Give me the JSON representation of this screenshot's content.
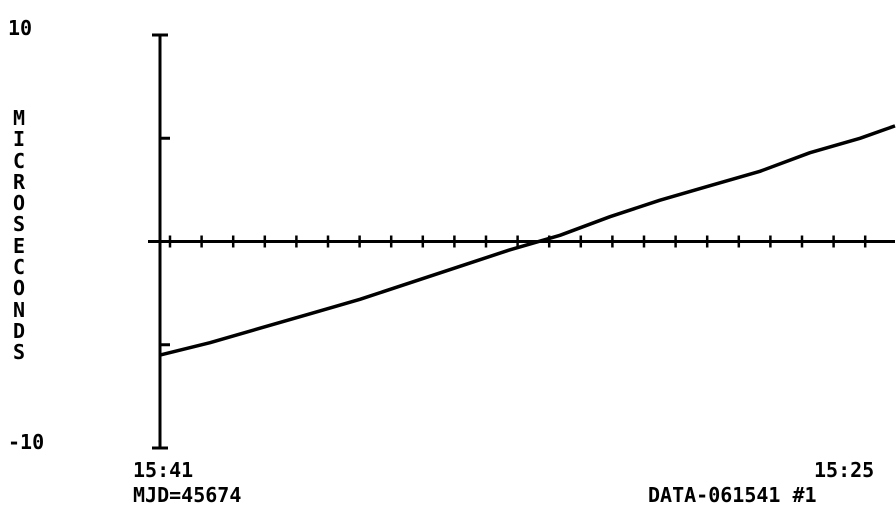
{
  "chart_data": {
    "type": "line",
    "title": "",
    "ylabel": "MICROSECONDS",
    "ylim": [
      -10,
      10
    ],
    "y_ticks": [
      "10",
      "-10"
    ],
    "x_start_label": "15:41",
    "x_end_label": "15:25",
    "footer_left": "MJD=45674",
    "footer_right": "DATA-061541 #1",
    "x": [
      0,
      50,
      100,
      150,
      200,
      250,
      300,
      350,
      400,
      450,
      500,
      550,
      600,
      650,
      700,
      735
    ],
    "series": [
      {
        "values": [
          -5.5,
          -4.9,
          -4.2,
          -3.5,
          -2.8,
          -2.0,
          -1.2,
          -0.4,
          0.3,
          1.2,
          2.0,
          2.7,
          3.4,
          4.3,
          5.0,
          5.6
        ]
      }
    ],
    "xlim": [
      0,
      735
    ],
    "grid": false,
    "line_color": "#000000"
  }
}
